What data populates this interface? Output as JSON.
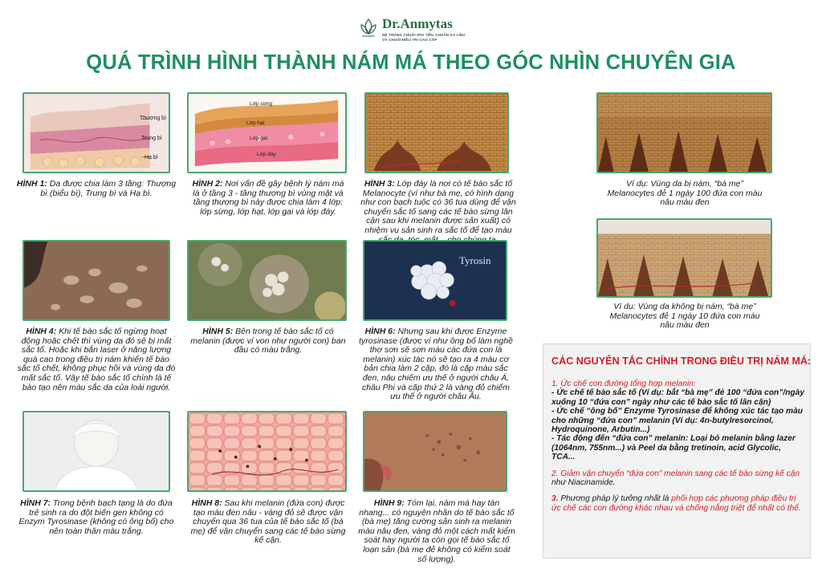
{
  "header": {
    "brand": "Dr.Anmytas",
    "tagline_1": "HỆ THỐNG CHUỖI SPA TIÊU CHUẨN DA LIỄU",
    "tagline_2": "VÀ CHUỖI ĐIỀU TRỊ CAO CẤP",
    "title": "QUÁ TRÌNH HÌNH THÀNH NÁM MÁ THEO GÓC NHÌN CHUYÊN GIA"
  },
  "figures": [
    {
      "label": "HÌNH 1:",
      "text": " Da được chia làm 3 tầng: Thượng bì (biểu bì), Trung bì và Hạ bì.",
      "image_labels": [
        "Thượng bì",
        "Trung bì",
        "Hạ bì"
      ]
    },
    {
      "label": "HÌNH 2:",
      "text": " Nơi vấn đề gây bệnh lý nám má là ở tầng 3 - tầng thượng bì vùng mặt và tầng thượng bì này được chia làm 4 lớp: lớp sừng, lớp hạt, lớp gai và lớp đáy.",
      "image_labels": [
        "Lớp sừng",
        "Lớp hạt",
        "Lớp gai",
        "Lớp đáy"
      ]
    },
    {
      "label": "HÌNH 3:",
      "text": " Lớp đáy là nơi có tế bào sắc tố Melanocyte (ví như bà mẹ, có hình dạng như con bạch tuộc có 36 tua dùng để vận chuyển sắc tố sang các tế bào sừng lân cận sau khi melanin được sản xuất) có nhiệm vụ sản sinh ra sắc tố để tạo màu sắc da, tóc, mắt... cho chúng ta."
    },
    {
      "label": "HÌNH 4:",
      "text": " Khi tế bào sắc tố ngừng hoạt động hoặc chết thì vùng da đó sẽ bị mất sắc tố. Hoặc khi bắn laser ở năng lượng quá cao trong điều trị nám khiến tế bào sắc tố chết, không phục hồi và vùng da đó mất sắc tố. Vậy tế bào sắc tố chính là tế bào tạo nên màu sắc da của loài người."
    },
    {
      "label": "HÌNH 5:",
      "text": " Bên trong tế bào sắc tố có melanin (được ví von như người con) ban đầu có màu trắng."
    },
    {
      "label": "HÌNH 6:",
      "text": " Nhưng sau khi được Enzyme tyrosinase (được ví như ông bố làm nghề thợ sơn sẽ sơn màu các đứa con là melanin) xúc tác nó sẽ tạo ra 4 màu cơ bản chia làm 2 cặp, đó là cặp màu sắc đen, nâu chiếm ưu thế ở người châu Á, châu Phi và cặp thứ 2 là vàng đỏ chiếm ưu thế ở người châu Âu.",
      "image_labels": [
        "Tyrosin"
      ]
    },
    {
      "label": "HÌNH 7:",
      "text": " Trong bệnh bạch tạng là do đứa trẻ sinh ra do đột biến gen không có Enzym Tyrosinase (không có ông bố) cho nên toàn thân màu trắng."
    },
    {
      "label": "HÌNH 8:",
      "text": " Sau khi melanin (đứa con) được tạo màu đen nâu - vàng đỏ sẽ được vận chuyển qua 36 tua của tế bào sắc tố (bà mẹ) để vận chuyển sang các tế bào sừng kế cận."
    },
    {
      "label": "HÌNH 9:",
      "text": " Tóm lại, nám má hay tàn nhang... có nguyên nhân do tế bào sắc tố (bà mẹ) tăng cường sản sinh ra melanin màu nâu đen, vàng đỏ một cách mất kiểm soát hay người ta còn gọi tế bào sắc tố loạn sản (bà mẹ đẻ không có kiểm soát số lượng)."
    }
  ],
  "examples": [
    {
      "text": "Ví dụ: Vùng da bị nám, “bà mẹ” Melanocytes đẻ 1 ngày 100 đứa con màu nâu màu đen"
    },
    {
      "text": "Ví dụ: Vùng da không bị nám, “bà mẹ” Melanocytes đẻ 1 ngày 10 đứa con màu nâu màu đen"
    }
  ],
  "principles": {
    "title": "CÁC NGUYÊN TẮC CHÍNH TRONG ĐIỀU TRỊ NÁM MÁ:",
    "p1_head": "1. Ức chế con đường tổng hợp melanin:",
    "p1_items": [
      "- Ức chế tế bào sắc tố (Ví dụ: bắt “bà mẹ” đẻ 100 “đứa con”/ngày xuống 10 “đứa con” ngày như các tế bào sắc tố lân cận)",
      "- Ức chế “ông bố” Enzyme Tyrosinase để không xúc tác tạo màu cho những “đứa con” melanin (Ví dụ: 4n-butylresorcinol, Hydroquinone, Arbutin...)",
      "- Tác động đến “đứa con” melanin: Loại bỏ melanin bằng lazer (1064nm, 755nm...) và Peel da bằng tretinoin, acid Glycolic, TCA..."
    ],
    "p2_head": "2. Giảm vận chuyển “đứa con” melanin sang các tế bào sừng kế cận",
    "p2_tail": " như Niacinamide.",
    "p3_num": "3.",
    "p3_text": " Phương pháp lý tưởng nhất là ",
    "p3_red": "phối hợp các phương pháp điều trị ức chế các con đường khác nhau và chống nắng triệt để nhất có thể."
  },
  "colors": {
    "title_green": "#1f8f60",
    "frame_green": "#47a870",
    "accent_red": "#d51e24"
  }
}
